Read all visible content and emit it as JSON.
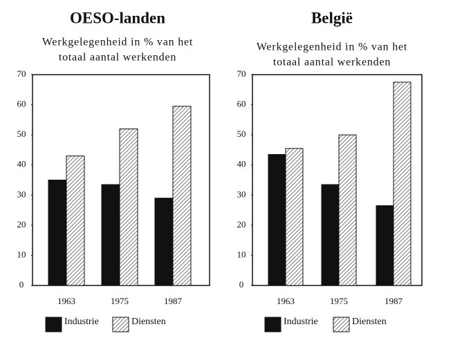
{
  "chart_data": [
    {
      "type": "bar",
      "title": "OESO-landen",
      "subtitle": [
        "Werkgelegenheid in % van het",
        "totaal aantal werkenden"
      ],
      "categories": [
        "1963",
        "1975",
        "1987"
      ],
      "series": [
        {
          "name": "Industrie",
          "color": "#111111",
          "values": [
            35,
            33.5,
            29
          ]
        },
        {
          "name": "Diensten",
          "color": "#777777",
          "pattern": "hatch",
          "values": [
            43,
            52,
            59.5
          ]
        }
      ],
      "ylim": [
        0,
        70
      ],
      "yticks": [
        0,
        10,
        20,
        30,
        40,
        50,
        60,
        70
      ],
      "legend": "bottom"
    },
    {
      "type": "bar",
      "title": "België",
      "subtitle": [
        "Werkgelegenheid in % van het",
        "totaal aantal werkenden"
      ],
      "categories": [
        "1963",
        "1975",
        "1987"
      ],
      "series": [
        {
          "name": "Industrie",
          "color": "#111111",
          "values": [
            43.5,
            33.5,
            26.5
          ]
        },
        {
          "name": "Diensten",
          "color": "#777777",
          "pattern": "hatch",
          "values": [
            45.5,
            50,
            67.5
          ]
        }
      ],
      "ylim": [
        0,
        70
      ],
      "yticks": [
        0,
        10,
        20,
        30,
        40,
        50,
        60,
        70
      ],
      "legend": "bottom"
    }
  ]
}
